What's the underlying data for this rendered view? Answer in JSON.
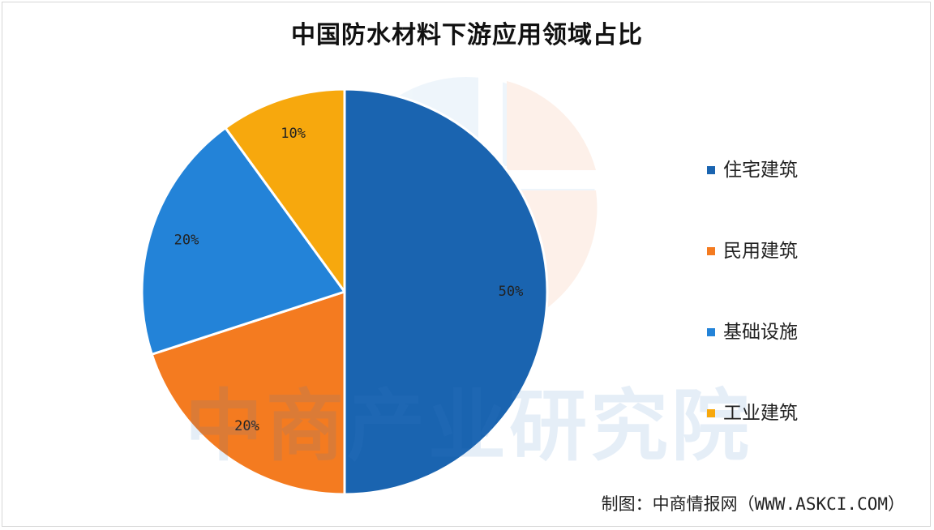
{
  "chart_data": {
    "type": "pie",
    "title": "中国防水材料下游应用领域占比",
    "slices": [
      {
        "name": "住宅建筑",
        "value": 50,
        "label": "50%",
        "color": "#1a64b0"
      },
      {
        "name": "民用建筑",
        "value": 20,
        "label": "20%",
        "color": "#f47b20"
      },
      {
        "name": "基础设施",
        "value": 20,
        "label": "20%",
        "color": "#2383d8"
      },
      {
        "name": "工业建筑",
        "value": 10,
        "label": "10%",
        "color": "#f7a80d"
      }
    ],
    "legend_position": "right"
  },
  "watermark": "中商产业研究院",
  "source": "制图：中商情报网（WWW.ASKCI.COM）"
}
